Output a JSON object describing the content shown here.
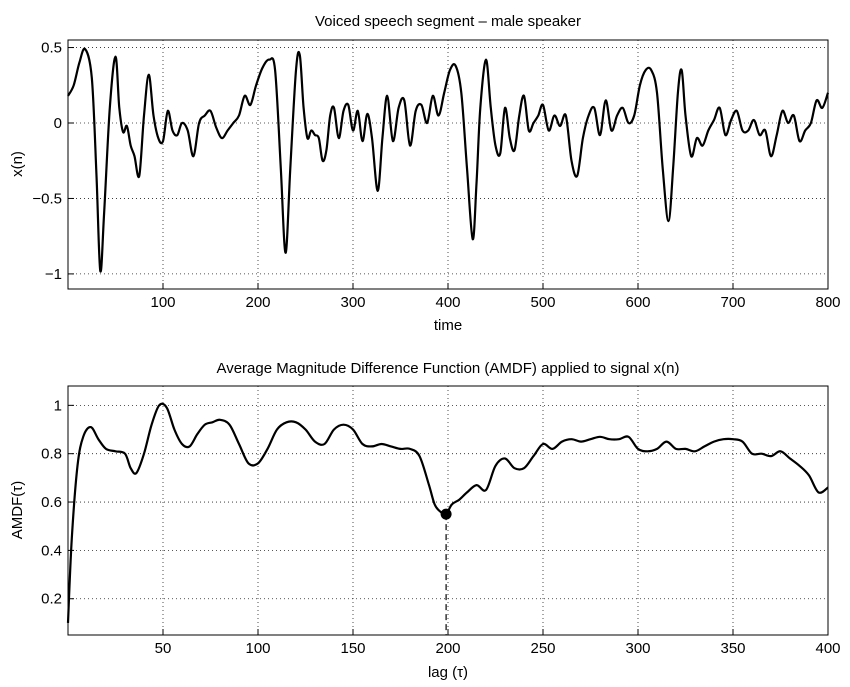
{
  "chart_data": [
    {
      "type": "line",
      "title": "Voiced speech segment – male speaker",
      "xlabel": "time",
      "ylabel": "x(n)",
      "xlim": [
        0,
        800
      ],
      "ylim": [
        -1.1,
        0.55
      ],
      "xticks": [
        100,
        200,
        300,
        400,
        500,
        600,
        700,
        800
      ],
      "yticks": [
        -1,
        -0.5,
        0,
        0.5
      ],
      "xtick_labels": [
        "100",
        "200",
        "300",
        "400",
        "500",
        "600",
        "700",
        "800"
      ],
      "ytick_labels": [
        "−1",
        "−0.5",
        "0",
        "0.5"
      ],
      "grid": true,
      "color": "#000000",
      "series": [
        {
          "x": [
            0,
            6,
            12,
            18,
            25,
            30,
            34,
            38,
            44,
            50,
            54,
            58,
            62,
            66,
            70,
            75,
            80,
            85,
            90,
            95,
            100,
            105,
            110,
            115,
            120,
            126,
            132,
            138,
            144,
            150,
            156,
            162,
            168,
            174,
            180,
            186,
            192,
            198,
            205,
            212,
            218,
            224,
            229,
            234,
            240,
            244,
            248,
            252,
            256,
            260,
            264,
            268,
            272,
            276,
            280,
            285,
            290,
            295,
            300,
            305,
            310,
            315,
            320,
            326,
            331,
            336,
            342,
            348,
            354,
            360,
            366,
            372,
            378,
            384,
            390,
            396,
            402,
            408,
            414,
            420,
            426,
            430,
            434,
            440,
            445,
            450,
            455,
            460,
            465,
            470,
            475,
            480,
            485,
            490,
            495,
            500,
            506,
            512,
            518,
            524,
            530,
            536,
            542,
            548,
            554,
            560,
            566,
            572,
            578,
            584,
            590,
            596,
            602,
            608,
            614,
            620,
            626,
            632,
            637,
            642,
            646,
            650,
            656,
            662,
            668,
            674,
            680,
            686,
            692,
            698,
            704,
            710,
            716,
            722,
            728,
            734,
            740,
            746,
            752,
            758,
            764,
            770,
            776,
            782,
            788,
            794,
            800
          ],
          "y": [
            0.18,
            0.25,
            0.4,
            0.49,
            0.3,
            -0.35,
            -0.98,
            -0.6,
            0.1,
            0.44,
            0.1,
            -0.06,
            -0.02,
            -0.15,
            -0.22,
            -0.35,
            0.05,
            0.32,
            0.05,
            -0.1,
            -0.12,
            0.08,
            -0.05,
            -0.08,
            0.0,
            -0.05,
            -0.22,
            0.0,
            0.05,
            0.08,
            -0.03,
            -0.1,
            -0.05,
            0.0,
            0.05,
            0.18,
            0.12,
            0.25,
            0.37,
            0.42,
            0.35,
            -0.3,
            -0.86,
            -0.3,
            0.35,
            0.45,
            0.1,
            -0.1,
            -0.05,
            -0.08,
            -0.1,
            -0.25,
            -0.18,
            0.05,
            0.1,
            -0.1,
            0.08,
            0.12,
            -0.05,
            0.08,
            -0.12,
            0.06,
            -0.1,
            -0.45,
            -0.1,
            0.18,
            -0.12,
            0.1,
            0.15,
            -0.15,
            0.08,
            0.12,
            0.0,
            0.18,
            0.05,
            0.2,
            0.35,
            0.38,
            0.2,
            -0.3,
            -0.77,
            -0.4,
            0.1,
            0.42,
            0.1,
            -0.15,
            -0.2,
            0.1,
            -0.1,
            -0.18,
            0.05,
            0.18,
            -0.05,
            0.0,
            0.05,
            0.12,
            -0.05,
            0.05,
            -0.02,
            0.05,
            -0.25,
            -0.35,
            -0.1,
            0.05,
            0.1,
            -0.08,
            0.15,
            -0.05,
            0.05,
            0.1,
            0.0,
            0.05,
            0.25,
            0.35,
            0.35,
            0.2,
            -0.3,
            -0.65,
            -0.3,
            0.2,
            0.35,
            0.05,
            -0.22,
            -0.1,
            -0.15,
            -0.05,
            0.02,
            0.1,
            -0.08,
            0.02,
            0.08,
            -0.05,
            -0.05,
            0.02,
            -0.08,
            -0.05,
            -0.22,
            -0.08,
            0.08,
            0.0,
            0.05,
            -0.12,
            -0.05,
            0.0,
            0.15,
            0.1,
            0.2
          ]
        }
      ]
    },
    {
      "type": "line",
      "title": "Average Magnitude Difference  Function (AMDF) applied to signal x(n)",
      "xlabel": "lag (τ)",
      "ylabel": "AMDF(τ)",
      "xlim": [
        0,
        400
      ],
      "ylim": [
        0.05,
        1.08
      ],
      "xticks": [
        50,
        100,
        150,
        200,
        250,
        300,
        350,
        400
      ],
      "yticks": [
        0.2,
        0.4,
        0.6,
        0.8,
        1
      ],
      "xtick_labels": [
        "50",
        "100",
        "150",
        "200",
        "250",
        "300",
        "350",
        "400"
      ],
      "ytick_labels": [
        "0.2",
        "0.4",
        "0.6",
        "0.8",
        "1"
      ],
      "grid": true,
      "color": "#000000",
      "series": [
        {
          "x": [
            0,
            2,
            5,
            8,
            12,
            16,
            20,
            25,
            30,
            33,
            36,
            40,
            44,
            48,
            52,
            56,
            60,
            64,
            68,
            72,
            76,
            80,
            85,
            90,
            95,
            100,
            105,
            110,
            115,
            120,
            125,
            130,
            135,
            140,
            145,
            150,
            155,
            160,
            165,
            170,
            175,
            180,
            185,
            190,
            193,
            196,
            199,
            202,
            206,
            210,
            215,
            220,
            225,
            230,
            235,
            240,
            245,
            250,
            255,
            260,
            265,
            270,
            275,
            280,
            285,
            290,
            295,
            300,
            305,
            310,
            315,
            320,
            325,
            330,
            335,
            340,
            345,
            350,
            355,
            360,
            365,
            370,
            375,
            380,
            385,
            390,
            395,
            400
          ],
          "y": [
            0.1,
            0.45,
            0.75,
            0.87,
            0.91,
            0.86,
            0.82,
            0.81,
            0.8,
            0.74,
            0.72,
            0.8,
            0.92,
            1.0,
            0.99,
            0.9,
            0.84,
            0.83,
            0.88,
            0.92,
            0.93,
            0.94,
            0.92,
            0.84,
            0.76,
            0.76,
            0.82,
            0.9,
            0.93,
            0.93,
            0.9,
            0.85,
            0.84,
            0.9,
            0.92,
            0.9,
            0.84,
            0.83,
            0.84,
            0.83,
            0.82,
            0.82,
            0.79,
            0.67,
            0.59,
            0.56,
            0.55,
            0.59,
            0.61,
            0.64,
            0.67,
            0.65,
            0.75,
            0.78,
            0.74,
            0.74,
            0.79,
            0.84,
            0.82,
            0.85,
            0.86,
            0.85,
            0.86,
            0.87,
            0.86,
            0.86,
            0.87,
            0.82,
            0.81,
            0.82,
            0.85,
            0.82,
            0.82,
            0.81,
            0.83,
            0.85,
            0.86,
            0.86,
            0.85,
            0.8,
            0.8,
            0.79,
            0.81,
            0.78,
            0.75,
            0.71,
            0.64,
            0.66
          ]
        }
      ],
      "marker": {
        "x": 199,
        "y": 0.55,
        "style": "filled-circle",
        "dropline": "dashed"
      }
    }
  ]
}
